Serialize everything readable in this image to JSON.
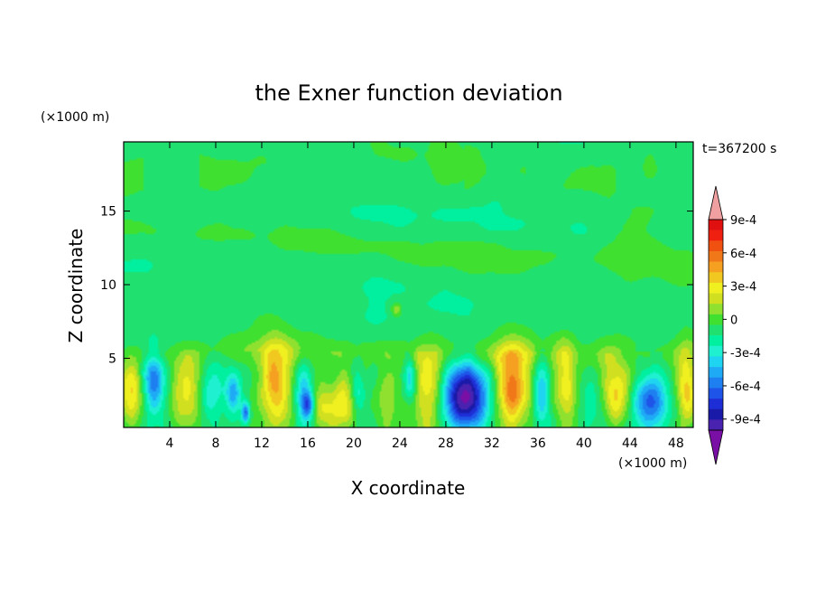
{
  "chart_data": {
    "type": "heatmap",
    "title": "the Exner function deviation",
    "xlabel": "X coordinate",
    "ylabel": "Z coordinate",
    "x_unit": "(×1000 m)",
    "y_unit": "(×1000 m)",
    "time_label": "t=367200 s",
    "xlim": [
      0,
      49.5
    ],
    "ylim": [
      0.3,
      19.7
    ],
    "x_ticks": [
      4,
      8,
      12,
      16,
      20,
      24,
      28,
      32,
      36,
      40,
      44,
      48
    ],
    "y_ticks": [
      5,
      10,
      15
    ],
    "colorbar": {
      "levels": [
        -0.0011,
        -0.001,
        -0.0009,
        -0.0008,
        -0.0007,
        -0.0006,
        -0.0005,
        -0.0004,
        -0.0003,
        -0.0002,
        -0.0001,
        0,
        0.0001,
        0.0002,
        0.0003,
        0.0004,
        0.0005,
        0.0006,
        0.0007,
        0.0008,
        0.0009,
        0.001
      ],
      "colors": [
        "#7a0fa6",
        "#4a22b0",
        "#1a1aa8",
        "#1e2ed6",
        "#1e55e8",
        "#1e7ff0",
        "#1eaaf5",
        "#1ed4f0",
        "#1ef0d0",
        "#00f0a0",
        "#20e070",
        "#40e030",
        "#90e030",
        "#d0e020",
        "#f0f020",
        "#f0c820",
        "#f5a020",
        "#f07818",
        "#f05010",
        "#f02010",
        "#e01010",
        "#f0a0a0"
      ],
      "tick_labels": [
        "-9e-4",
        "-6e-4",
        "-3e-4",
        "0",
        "3e-4",
        "6e-4",
        "9e-4"
      ],
      "tick_values": [
        -0.0009,
        -0.0006,
        -0.0003,
        0,
        0.0003,
        0.0006,
        0.0009
      ]
    },
    "features": [
      {
        "x": 0.6,
        "z": 2.4,
        "sx": 0.7,
        "sz": 1.8,
        "v": 0.00045
      },
      {
        "x": 2.6,
        "z": 3.3,
        "sx": 0.6,
        "sz": 1.4,
        "v": -0.0005
      },
      {
        "x": 5.5,
        "z": 2.5,
        "sx": 0.9,
        "sz": 1.8,
        "v": 0.00045
      },
      {
        "x": 7.8,
        "z": 2.8,
        "sx": 0.7,
        "sz": 1.6,
        "v": -0.0002
      },
      {
        "x": 9.5,
        "z": 2.6,
        "sx": 0.4,
        "sz": 0.9,
        "v": -0.0004
      },
      {
        "x": 10.6,
        "z": 1.3,
        "sx": 0.25,
        "sz": 0.5,
        "v": -0.0006
      },
      {
        "x": 13.2,
        "z": 3.1,
        "sx": 0.9,
        "sz": 2.0,
        "v": 0.00055
      },
      {
        "x": 15.6,
        "z": 2.6,
        "sx": 0.5,
        "sz": 1.6,
        "v": -0.0004
      },
      {
        "x": 16.0,
        "z": 1.8,
        "sx": 0.35,
        "sz": 0.6,
        "v": -0.0005
      },
      {
        "x": 17.4,
        "z": 1.6,
        "sx": 0.8,
        "sz": 1.2,
        "v": 0.0003
      },
      {
        "x": 19.1,
        "z": 2.0,
        "sx": 0.6,
        "sz": 1.3,
        "v": 0.0004
      },
      {
        "x": 20.4,
        "z": 2.7,
        "sx": 0.4,
        "sz": 1.2,
        "v": -0.0002
      },
      {
        "x": 22.9,
        "z": 2.5,
        "sx": 0.6,
        "sz": 1.7,
        "v": 0.00025
      },
      {
        "x": 24.9,
        "z": 3.6,
        "sx": 0.35,
        "sz": 1.0,
        "v": -0.0004
      },
      {
        "x": 26.6,
        "z": 2.6,
        "sx": 1.0,
        "sz": 1.9,
        "v": 0.0005
      },
      {
        "x": 29.6,
        "z": 2.4,
        "sx": 1.5,
        "sz": 1.6,
        "v": -0.00095
      },
      {
        "x": 33.8,
        "z": 2.9,
        "sx": 1.0,
        "sz": 2.0,
        "v": 0.00065
      },
      {
        "x": 36.3,
        "z": 2.9,
        "sx": 0.5,
        "sz": 1.6,
        "v": -0.0004
      },
      {
        "x": 38.4,
        "z": 3.0,
        "sx": 0.6,
        "sz": 1.9,
        "v": 0.0004
      },
      {
        "x": 40.6,
        "z": 2.2,
        "sx": 0.7,
        "sz": 1.2,
        "v": -0.0002
      },
      {
        "x": 42.8,
        "z": 2.6,
        "sx": 0.9,
        "sz": 1.8,
        "v": 0.0004
      },
      {
        "x": 45.8,
        "z": 2.1,
        "sx": 1.0,
        "sz": 1.2,
        "v": -0.0006
      },
      {
        "x": 48.9,
        "z": 2.8,
        "sx": 0.6,
        "sz": 2.0,
        "v": 0.0004
      },
      {
        "x": 13.5,
        "z": 5.6,
        "sx": 3.0,
        "sz": 0.9,
        "v": 0.00012
      },
      {
        "x": 33.5,
        "z": 5.3,
        "sx": 4.0,
        "sz": 0.9,
        "v": 0.0001
      },
      {
        "x": 23.7,
        "z": 8.3,
        "sx": 0.35,
        "sz": 0.35,
        "v": 0.00025
      }
    ]
  }
}
